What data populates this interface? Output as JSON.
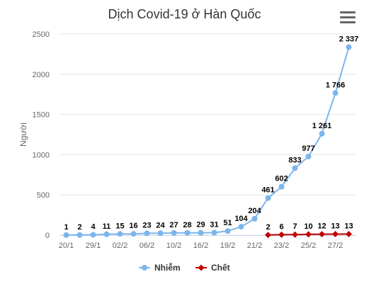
{
  "chart_data": {
    "type": "line",
    "title": "Dịch Covid-19 ở Hàn Quốc",
    "ylabel": "Người",
    "ylim": [
      0,
      2500
    ],
    "y_ticks": [
      "0",
      "500",
      "1000",
      "1500",
      "2000",
      "2500"
    ],
    "x_tick_labels": [
      "20/1",
      "29/1",
      "02/2",
      "06/2",
      "10/2",
      "16/2",
      "19/2",
      "21/2",
      "23/2",
      "25/2",
      "27/2"
    ],
    "x_categories": [
      "20/1",
      "",
      "29/1",
      "",
      "02/2",
      "",
      "06/2",
      "",
      "10/2",
      "",
      "16/2",
      "",
      "19/2",
      "",
      "21/2",
      "",
      "23/2",
      "",
      "25/2",
      "",
      "27/2",
      ""
    ],
    "legend_position": "bottom",
    "grid": true,
    "series": [
      {
        "name": "Nhiễm",
        "color": "#7cb5ec",
        "marker": "circle",
        "start_index": 0,
        "values": [
          1,
          2,
          4,
          11,
          15,
          16,
          23,
          24,
          27,
          28,
          29,
          31,
          51,
          104,
          204,
          461,
          602,
          833,
          977,
          1261,
          1766,
          2337
        ],
        "labels": [
          "1",
          "2",
          "4",
          "11",
          "15",
          "16",
          "23",
          "24",
          "27",
          "28",
          "29",
          "31",
          "51",
          "104",
          "204",
          "461",
          "602",
          "833",
          "977",
          "1 261",
          "1 766",
          "2 337"
        ]
      },
      {
        "name": "Chết",
        "color": "#c00000",
        "marker": "diamond",
        "start_index": 15,
        "values": [
          2,
          6,
          7,
          10,
          12,
          13,
          13
        ],
        "labels": [
          "2",
          "6",
          "7",
          "10",
          "12",
          "13",
          "13"
        ]
      }
    ]
  },
  "ui": {
    "menu_icon": "hamburger-menu-icon"
  }
}
